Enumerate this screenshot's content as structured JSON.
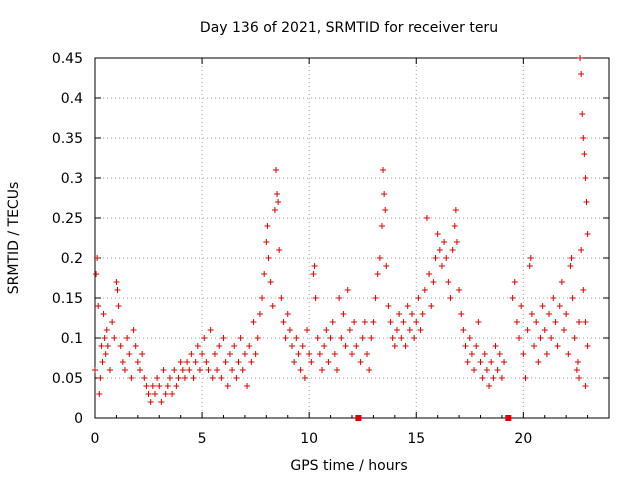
{
  "chart_data": {
    "type": "scatter",
    "title": "Day 136 of 2021, SRMTID for receiver teru",
    "xlabel": "GPS time / hours",
    "ylabel": "SRMTID / TECUs",
    "xlim": [
      0,
      24
    ],
    "ylim": [
      0,
      0.45
    ],
    "grid": true,
    "x_ticks": [
      0,
      5,
      10,
      15,
      20
    ],
    "x_tick_labels": [
      "0",
      "5",
      "10",
      "15",
      "20"
    ],
    "y_ticks": [
      0,
      0.05,
      0.1,
      0.15,
      0.2,
      0.25,
      0.3,
      0.35,
      0.4,
      0.45
    ],
    "y_tick_labels": [
      "0",
      "0.05",
      "0.1",
      "0.15",
      "0.2",
      "0.25",
      "0.3",
      "0.35",
      "0.4",
      "0.45"
    ],
    "marker": "+",
    "color": "#e00000",
    "data_gaps_x": [
      12.3,
      19.3
    ],
    "series": [
      {
        "name": "SRMTID",
        "points": [
          [
            0.0,
            0.06
          ],
          [
            0.05,
            0.18
          ],
          [
            0.1,
            0.2
          ],
          [
            0.15,
            0.14
          ],
          [
            0.2,
            0.03
          ],
          [
            0.25,
            0.05
          ],
          [
            0.3,
            0.09
          ],
          [
            0.35,
            0.07
          ],
          [
            0.4,
            0.13
          ],
          [
            0.45,
            0.1
          ],
          [
            0.5,
            0.08
          ],
          [
            0.55,
            0.11
          ],
          [
            0.6,
            0.09
          ],
          [
            0.7,
            0.06
          ],
          [
            0.8,
            0.12
          ],
          [
            0.9,
            0.1
          ],
          [
            1.0,
            0.17
          ],
          [
            1.05,
            0.16
          ],
          [
            1.1,
            0.14
          ],
          [
            1.2,
            0.09
          ],
          [
            1.3,
            0.07
          ],
          [
            1.4,
            0.06
          ],
          [
            1.5,
            0.1
          ],
          [
            1.6,
            0.08
          ],
          [
            1.7,
            0.05
          ],
          [
            1.8,
            0.11
          ],
          [
            1.9,
            0.09
          ],
          [
            2.0,
            0.07
          ],
          [
            2.1,
            0.06
          ],
          [
            2.2,
            0.08
          ],
          [
            2.3,
            0.05
          ],
          [
            2.4,
            0.04
          ],
          [
            2.5,
            0.03
          ],
          [
            2.6,
            0.02
          ],
          [
            2.7,
            0.04
          ],
          [
            2.8,
            0.03
          ],
          [
            2.9,
            0.05
          ],
          [
            3.0,
            0.04
          ],
          [
            3.1,
            0.02
          ],
          [
            3.2,
            0.06
          ],
          [
            3.3,
            0.03
          ],
          [
            3.4,
            0.04
          ],
          [
            3.5,
            0.05
          ],
          [
            3.6,
            0.03
          ],
          [
            3.7,
            0.06
          ],
          [
            3.8,
            0.04
          ],
          [
            3.9,
            0.05
          ],
          [
            4.0,
            0.07
          ],
          [
            4.1,
            0.06
          ],
          [
            4.2,
            0.05
          ],
          [
            4.3,
            0.07
          ],
          [
            4.4,
            0.06
          ],
          [
            4.5,
            0.08
          ],
          [
            4.6,
            0.05
          ],
          [
            4.7,
            0.07
          ],
          [
            4.8,
            0.09
          ],
          [
            4.9,
            0.06
          ],
          [
            5.0,
            0.08
          ],
          [
            5.1,
            0.1
          ],
          [
            5.2,
            0.07
          ],
          [
            5.3,
            0.06
          ],
          [
            5.4,
            0.11
          ],
          [
            5.5,
            0.05
          ],
          [
            5.6,
            0.08
          ],
          [
            5.7,
            0.06
          ],
          [
            5.8,
            0.09
          ],
          [
            5.9,
            0.05
          ],
          [
            6.0,
            0.1
          ],
          [
            6.1,
            0.07
          ],
          [
            6.2,
            0.04
          ],
          [
            6.3,
            0.08
          ],
          [
            6.4,
            0.06
          ],
          [
            6.5,
            0.09
          ],
          [
            6.6,
            0.05
          ],
          [
            6.7,
            0.07
          ],
          [
            6.8,
            0.1
          ],
          [
            6.9,
            0.06
          ],
          [
            7.0,
            0.08
          ],
          [
            7.1,
            0.04
          ],
          [
            7.2,
            0.09
          ],
          [
            7.3,
            0.07
          ],
          [
            7.4,
            0.12
          ],
          [
            7.5,
            0.08
          ],
          [
            7.6,
            0.1
          ],
          [
            7.7,
            0.13
          ],
          [
            7.8,
            0.15
          ],
          [
            7.9,
            0.18
          ],
          [
            8.0,
            0.22
          ],
          [
            8.05,
            0.24
          ],
          [
            8.1,
            0.2
          ],
          [
            8.2,
            0.17
          ],
          [
            8.3,
            0.14
          ],
          [
            8.4,
            0.26
          ],
          [
            8.45,
            0.31
          ],
          [
            8.5,
            0.28
          ],
          [
            8.55,
            0.27
          ],
          [
            8.6,
            0.21
          ],
          [
            8.7,
            0.15
          ],
          [
            8.8,
            0.12
          ],
          [
            8.9,
            0.1
          ],
          [
            9.0,
            0.13
          ],
          [
            9.1,
            0.11
          ],
          [
            9.2,
            0.09
          ],
          [
            9.3,
            0.07
          ],
          [
            9.4,
            0.1
          ],
          [
            9.5,
            0.08
          ],
          [
            9.6,
            0.06
          ],
          [
            9.7,
            0.09
          ],
          [
            9.8,
            0.05
          ],
          [
            9.9,
            0.11
          ],
          [
            10.0,
            0.08
          ],
          [
            10.1,
            0.07
          ],
          [
            10.2,
            0.18
          ],
          [
            10.25,
            0.19
          ],
          [
            10.3,
            0.15
          ],
          [
            10.4,
            0.1
          ],
          [
            10.5,
            0.08
          ],
          [
            10.6,
            0.06
          ],
          [
            10.7,
            0.09
          ],
          [
            10.8,
            0.11
          ],
          [
            10.9,
            0.07
          ],
          [
            11.0,
            0.1
          ],
          [
            11.1,
            0.12
          ],
          [
            11.2,
            0.08
          ],
          [
            11.3,
            0.06
          ],
          [
            11.4,
            0.15
          ],
          [
            11.5,
            0.1
          ],
          [
            11.6,
            0.13
          ],
          [
            11.7,
            0.09
          ],
          [
            11.8,
            0.16
          ],
          [
            11.9,
            0.11
          ],
          [
            12.0,
            0.08
          ],
          [
            12.1,
            0.12
          ],
          [
            12.2,
            0.09
          ],
          [
            12.4,
            0.07
          ],
          [
            12.5,
            0.1
          ],
          [
            12.6,
            0.12
          ],
          [
            12.7,
            0.08
          ],
          [
            12.8,
            0.06
          ],
          [
            12.9,
            0.1
          ],
          [
            13.0,
            0.12
          ],
          [
            13.1,
            0.15
          ],
          [
            13.2,
            0.18
          ],
          [
            13.3,
            0.2
          ],
          [
            13.4,
            0.24
          ],
          [
            13.45,
            0.31
          ],
          [
            13.5,
            0.28
          ],
          [
            13.55,
            0.26
          ],
          [
            13.6,
            0.19
          ],
          [
            13.7,
            0.14
          ],
          [
            13.8,
            0.12
          ],
          [
            13.9,
            0.1
          ],
          [
            14.0,
            0.09
          ],
          [
            14.1,
            0.11
          ],
          [
            14.2,
            0.13
          ],
          [
            14.3,
            0.1
          ],
          [
            14.4,
            0.12
          ],
          [
            14.5,
            0.09
          ],
          [
            14.6,
            0.14
          ],
          [
            14.7,
            0.11
          ],
          [
            14.8,
            0.13
          ],
          [
            14.9,
            0.1
          ],
          [
            15.0,
            0.12
          ],
          [
            15.1,
            0.15
          ],
          [
            15.2,
            0.11
          ],
          [
            15.3,
            0.13
          ],
          [
            15.4,
            0.16
          ],
          [
            15.5,
            0.25
          ],
          [
            15.6,
            0.18
          ],
          [
            15.7,
            0.14
          ],
          [
            15.8,
            0.17
          ],
          [
            15.9,
            0.2
          ],
          [
            16.0,
            0.23
          ],
          [
            16.1,
            0.21
          ],
          [
            16.2,
            0.19
          ],
          [
            16.3,
            0.22
          ],
          [
            16.4,
            0.2
          ],
          [
            16.5,
            0.17
          ],
          [
            16.6,
            0.15
          ],
          [
            16.7,
            0.21
          ],
          [
            16.8,
            0.24
          ],
          [
            16.85,
            0.26
          ],
          [
            16.9,
            0.22
          ],
          [
            17.0,
            0.16
          ],
          [
            17.1,
            0.13
          ],
          [
            17.2,
            0.11
          ],
          [
            17.3,
            0.09
          ],
          [
            17.4,
            0.07
          ],
          [
            17.5,
            0.1
          ],
          [
            17.6,
            0.08
          ],
          [
            17.7,
            0.06
          ],
          [
            17.8,
            0.09
          ],
          [
            17.9,
            0.12
          ],
          [
            18.0,
            0.07
          ],
          [
            18.1,
            0.05
          ],
          [
            18.2,
            0.08
          ],
          [
            18.3,
            0.06
          ],
          [
            18.4,
            0.04
          ],
          [
            18.5,
            0.07
          ],
          [
            18.6,
            0.05
          ],
          [
            18.7,
            0.09
          ],
          [
            18.8,
            0.06
          ],
          [
            18.9,
            0.08
          ],
          [
            19.0,
            0.05
          ],
          [
            19.1,
            0.07
          ],
          [
            19.5,
            0.15
          ],
          [
            19.6,
            0.17
          ],
          [
            19.7,
            0.12
          ],
          [
            19.8,
            0.1
          ],
          [
            19.9,
            0.14
          ],
          [
            20.0,
            0.08
          ],
          [
            20.1,
            0.05
          ],
          [
            20.2,
            0.11
          ],
          [
            20.3,
            0.19
          ],
          [
            20.35,
            0.2
          ],
          [
            20.4,
            0.13
          ],
          [
            20.5,
            0.09
          ],
          [
            20.6,
            0.12
          ],
          [
            20.7,
            0.07
          ],
          [
            20.8,
            0.1
          ],
          [
            20.9,
            0.14
          ],
          [
            21.0,
            0.11
          ],
          [
            21.1,
            0.08
          ],
          [
            21.2,
            0.13
          ],
          [
            21.3,
            0.1
          ],
          [
            21.4,
            0.15
          ],
          [
            21.5,
            0.12
          ],
          [
            21.6,
            0.09
          ],
          [
            21.7,
            0.14
          ],
          [
            21.8,
            0.17
          ],
          [
            21.9,
            0.11
          ],
          [
            22.0,
            0.13
          ],
          [
            22.1,
            0.08
          ],
          [
            22.2,
            0.19
          ],
          [
            22.25,
            0.2
          ],
          [
            22.3,
            0.15
          ],
          [
            22.4,
            0.1
          ],
          [
            22.5,
            0.06
          ],
          [
            22.55,
            0.07
          ],
          [
            22.6,
            0.12
          ],
          [
            22.65,
            0.45
          ],
          [
            22.7,
            0.43
          ],
          [
            22.75,
            0.38
          ],
          [
            22.8,
            0.35
          ],
          [
            22.85,
            0.33
          ],
          [
            22.9,
            0.3
          ],
          [
            22.95,
            0.27
          ],
          [
            23.0,
            0.23
          ],
          [
            22.7,
            0.21
          ],
          [
            22.8,
            0.16
          ],
          [
            22.9,
            0.12
          ],
          [
            23.0,
            0.09
          ],
          [
            22.6,
            0.05
          ],
          [
            22.9,
            0.04
          ]
        ]
      }
    ]
  }
}
